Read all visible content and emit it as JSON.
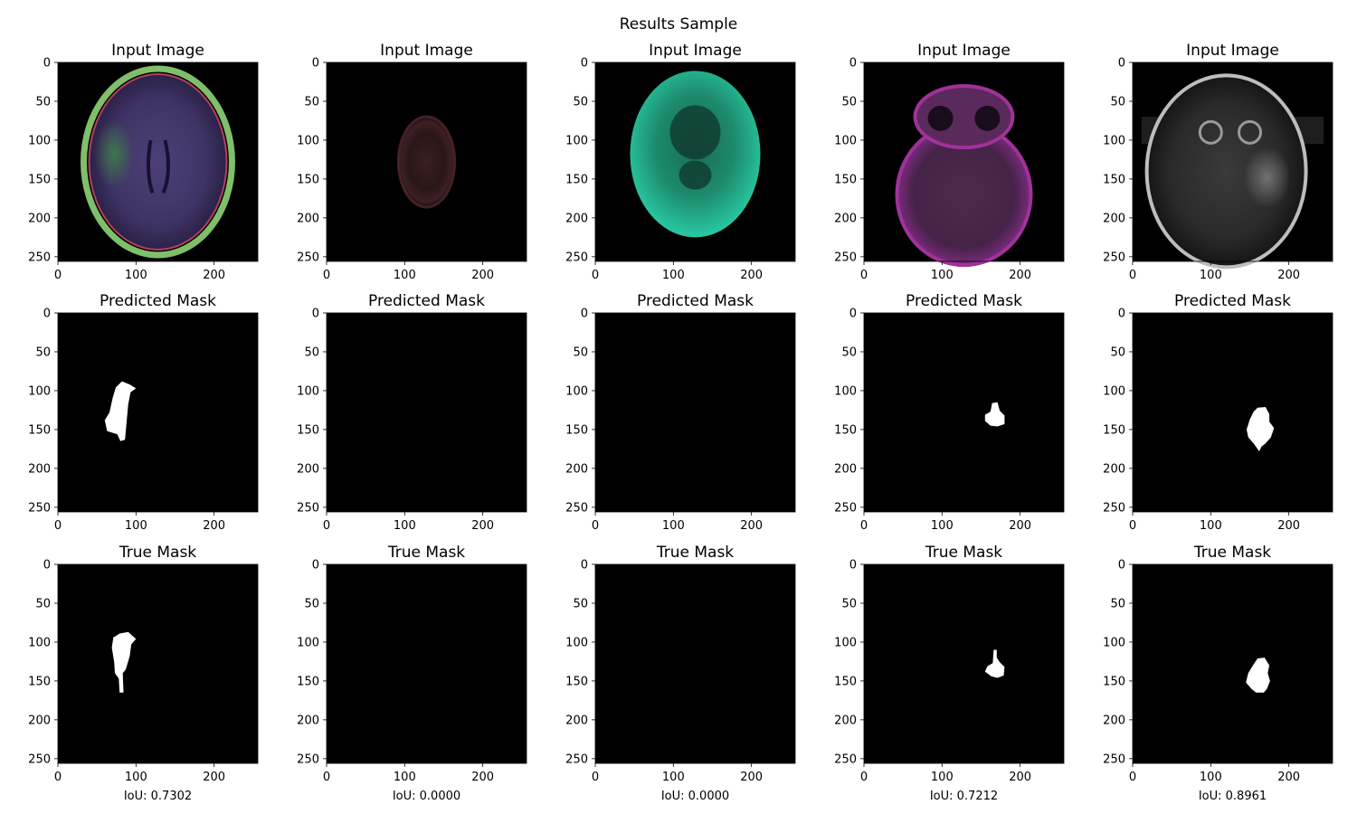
{
  "figure": {
    "suptitle": "Results Sample",
    "row_titles": [
      "Input Image",
      "Predicted Mask",
      "True Mask"
    ],
    "iou_labels": [
      "IoU: 0.7302",
      "IoU: 0.0000",
      "IoU: 0.0000",
      "IoU: 0.7212",
      "IoU: 0.8961"
    ]
  },
  "chart_data": {
    "type": "image-grid",
    "title": "Results Sample",
    "rows": 3,
    "cols": 5,
    "xlim": [
      0,
      256
    ],
    "ylim": [
      256,
      0
    ],
    "xticks": [
      0,
      100,
      200
    ],
    "yticks": [
      0,
      50,
      100,
      150,
      200,
      250
    ],
    "grid": false,
    "samples": [
      {
        "iou": 0.7302,
        "iou_label": "IoU: 0.7302",
        "input": {
          "style": "brain-purple-green",
          "tumor_center": [
            75,
            115
          ]
        },
        "predicted_mask": [
          [
            82,
            88
          ],
          [
            92,
            92
          ],
          [
            100,
            97
          ],
          [
            93,
            102
          ],
          [
            90,
            118
          ],
          [
            88,
            140
          ],
          [
            86,
            163
          ],
          [
            80,
            165
          ],
          [
            76,
            156
          ],
          [
            63,
            152
          ],
          [
            60,
            138
          ],
          [
            66,
            128
          ],
          [
            70,
            110
          ],
          [
            74,
            96
          ]
        ],
        "true_mask": [
          [
            79,
            89
          ],
          [
            90,
            87
          ],
          [
            100,
            96
          ],
          [
            94,
            103
          ],
          [
            92,
            118
          ],
          [
            87,
            135
          ],
          [
            83,
            140
          ],
          [
            84,
            165
          ],
          [
            79,
            165
          ],
          [
            78,
            147
          ],
          [
            73,
            140
          ],
          [
            72,
            126
          ],
          [
            69,
            107
          ],
          [
            71,
            94
          ]
        ]
      },
      {
        "iou": 0.0,
        "iou_label": "IoU: 0.0000",
        "input": {
          "style": "brain-dim-red"
        },
        "predicted_mask": [],
        "true_mask": []
      },
      {
        "iou": 0.0,
        "iou_label": "IoU: 0.0000",
        "input": {
          "style": "head-teal"
        },
        "predicted_mask": [],
        "true_mask": []
      },
      {
        "iou": 0.7212,
        "iou_label": "IoU: 0.7212",
        "input": {
          "style": "brain-magenta",
          "tumor_center": [
            170,
            135
          ]
        },
        "predicted_mask": [
          [
            164,
            116
          ],
          [
            171,
            115
          ],
          [
            174,
            126
          ],
          [
            180,
            132
          ],
          [
            180,
            143
          ],
          [
            171,
            146
          ],
          [
            162,
            145
          ],
          [
            155,
            139
          ],
          [
            155,
            131
          ],
          [
            162,
            127
          ]
        ],
        "true_mask": [
          [
            166,
            110
          ],
          [
            170,
            110
          ],
          [
            170,
            120
          ],
          [
            174,
            126
          ],
          [
            180,
            132
          ],
          [
            179,
            143
          ],
          [
            171,
            146
          ],
          [
            163,
            144
          ],
          [
            155,
            138
          ],
          [
            158,
            131
          ],
          [
            165,
            127
          ]
        ]
      },
      {
        "iou": 0.8961,
        "iou_label": "IoU: 0.8961",
        "input": {
          "style": "brain-gray",
          "tumor_center": [
            168,
            148
          ]
        },
        "predicted_mask": [
          [
            160,
            122
          ],
          [
            170,
            121
          ],
          [
            175,
            130
          ],
          [
            175,
            140
          ],
          [
            181,
            148
          ],
          [
            177,
            160
          ],
          [
            170,
            168
          ],
          [
            165,
            172
          ],
          [
            162,
            178
          ],
          [
            155,
            168
          ],
          [
            148,
            160
          ],
          [
            146,
            150
          ],
          [
            150,
            137
          ],
          [
            155,
            127
          ]
        ],
        "true_mask": [
          [
            160,
            121
          ],
          [
            169,
            120
          ],
          [
            175,
            130
          ],
          [
            173,
            140
          ],
          [
            176,
            150
          ],
          [
            172,
            160
          ],
          [
            168,
            165
          ],
          [
            158,
            165
          ],
          [
            152,
            160
          ],
          [
            145,
            152
          ],
          [
            148,
            140
          ],
          [
            154,
            130
          ]
        ]
      }
    ]
  }
}
